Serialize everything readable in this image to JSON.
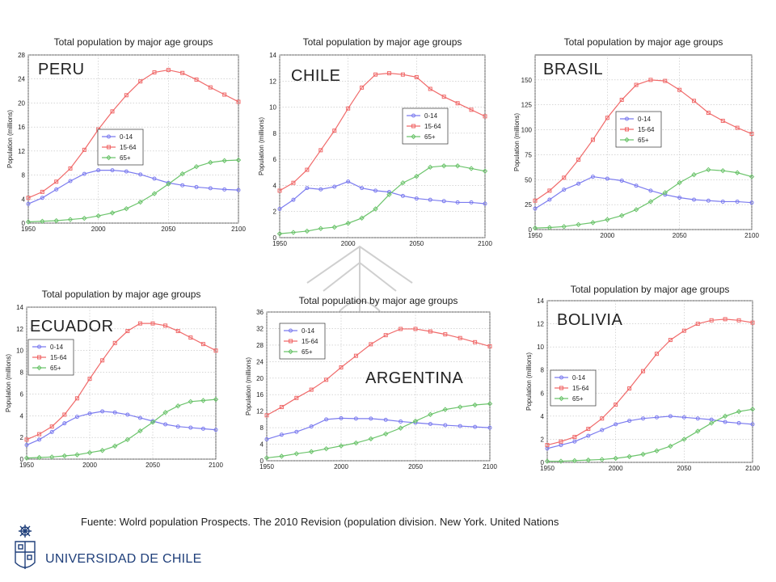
{
  "caption": "Fuente: Wolrd population Prospects. The 2010 Revision (population division. New York. United Nations",
  "logo": {
    "name": "UNIVERSIDAD DE CHILE",
    "color": "#1f3f7a"
  },
  "series_colors": {
    "0-14": "#7b7bef",
    "15-64": "#f06a6a",
    "65+": "#6cc46c"
  },
  "chart_data": [
    {
      "type": "line",
      "country": "PERU",
      "title": "Total population by major age groups",
      "ylabel": "Population (millions)",
      "xlabel": "",
      "xlim": [
        1950,
        2100
      ],
      "ylim": [
        0,
        28
      ],
      "xticks": [
        1950,
        2000,
        2050,
        2100
      ],
      "yticks": [
        0,
        4,
        8,
        12,
        16,
        20,
        24,
        28
      ],
      "x": [
        1950,
        1960,
        1970,
        1980,
        1990,
        2000,
        2010,
        2020,
        2030,
        2040,
        2050,
        2060,
        2070,
        2080,
        2090,
        2100
      ],
      "series": [
        {
          "name": "0-14",
          "values": [
            3.2,
            4.2,
            5.6,
            7.0,
            8.2,
            8.8,
            8.8,
            8.6,
            8.1,
            7.4,
            6.7,
            6.3,
            6.0,
            5.8,
            5.6,
            5.5
          ]
        },
        {
          "name": "15-64",
          "values": [
            4.2,
            5.2,
            6.9,
            9.1,
            12.2,
            15.6,
            18.6,
            21.3,
            23.6,
            25.1,
            25.5,
            25.0,
            23.9,
            22.6,
            21.4,
            20.2
          ]
        },
        {
          "name": "65+",
          "values": [
            0.2,
            0.3,
            0.4,
            0.6,
            0.8,
            1.2,
            1.7,
            2.4,
            3.5,
            4.9,
            6.5,
            8.2,
            9.4,
            10.1,
            10.4,
            10.5
          ]
        }
      ]
    },
    {
      "type": "line",
      "country": "CHILE",
      "title": "Total population by major age groups",
      "ylabel": "Population (millions)",
      "xlabel": "",
      "xlim": [
        1950,
        2100
      ],
      "ylim": [
        0,
        14
      ],
      "xticks": [
        1950,
        2000,
        2050,
        2100
      ],
      "yticks": [
        0,
        2,
        4,
        6,
        8,
        10,
        12,
        14
      ],
      "x": [
        1950,
        1960,
        1970,
        1980,
        1990,
        2000,
        2010,
        2020,
        2030,
        2040,
        2050,
        2060,
        2070,
        2080,
        2090,
        2100
      ],
      "series": [
        {
          "name": "0-14",
          "values": [
            2.2,
            2.9,
            3.8,
            3.7,
            3.9,
            4.3,
            3.8,
            3.6,
            3.5,
            3.2,
            3.0,
            2.9,
            2.8,
            2.7,
            2.7,
            2.6
          ]
        },
        {
          "name": "15-64",
          "values": [
            3.6,
            4.2,
            5.2,
            6.7,
            8.2,
            9.9,
            11.5,
            12.5,
            12.6,
            12.5,
            12.3,
            11.4,
            10.8,
            10.3,
            9.8,
            9.3
          ]
        },
        {
          "name": "65+",
          "values": [
            0.3,
            0.4,
            0.5,
            0.7,
            0.8,
            1.1,
            1.5,
            2.2,
            3.3,
            4.2,
            4.7,
            5.4,
            5.5,
            5.5,
            5.3,
            5.1
          ]
        }
      ]
    },
    {
      "type": "line",
      "country": "BRASIL",
      "title": "Total population by major age groups",
      "ylabel": "Population (millions)",
      "xlabel": "",
      "xlim": [
        1950,
        2100
      ],
      "ylim": [
        0,
        175
      ],
      "xticks": [
        1950,
        2000,
        2050,
        2100
      ],
      "yticks": [
        0,
        25,
        50,
        75,
        100,
        125,
        150
      ],
      "x": [
        1950,
        1960,
        1970,
        1980,
        1990,
        2000,
        2010,
        2020,
        2030,
        2040,
        2050,
        2060,
        2070,
        2080,
        2090,
        2100
      ],
      "series": [
        {
          "name": "0-14",
          "values": [
            21,
            30,
            40,
            46,
            53,
            51,
            49,
            44,
            39,
            35,
            32,
            30,
            29,
            28,
            28,
            27
          ]
        },
        {
          "name": "15-64",
          "values": [
            29,
            39,
            52,
            70,
            90,
            112,
            130,
            145,
            150,
            149,
            140,
            129,
            117,
            109,
            102,
            96
          ]
        },
        {
          "name": "65+",
          "values": [
            1.5,
            2,
            3,
            5,
            7,
            10,
            14,
            20,
            28,
            37,
            47,
            55,
            60,
            59,
            57,
            53
          ]
        }
      ]
    },
    {
      "type": "line",
      "country": "ECUADOR",
      "title": "Total population by major age groups",
      "ylabel": "Population (millions)",
      "xlabel": "",
      "xlim": [
        1950,
        2100
      ],
      "ylim": [
        0,
        14
      ],
      "xticks": [
        1950,
        2000,
        2050,
        2100
      ],
      "yticks": [
        0,
        2,
        4,
        6,
        8,
        10,
        12,
        14
      ],
      "x": [
        1950,
        1960,
        1970,
        1980,
        1990,
        2000,
        2010,
        2020,
        2030,
        2040,
        2050,
        2060,
        2070,
        2080,
        2090,
        2100
      ],
      "series": [
        {
          "name": "0-14",
          "values": [
            1.3,
            1.8,
            2.5,
            3.3,
            3.9,
            4.2,
            4.4,
            4.3,
            4.1,
            3.8,
            3.5,
            3.2,
            3.0,
            2.9,
            2.8,
            2.7
          ]
        },
        {
          "name": "15-64",
          "values": [
            1.8,
            2.3,
            3.0,
            4.1,
            5.6,
            7.4,
            9.1,
            10.7,
            11.8,
            12.5,
            12.5,
            12.3,
            11.8,
            11.2,
            10.6,
            10.0
          ]
        },
        {
          "name": "65+",
          "values": [
            0.1,
            0.15,
            0.2,
            0.3,
            0.4,
            0.6,
            0.8,
            1.2,
            1.8,
            2.6,
            3.4,
            4.3,
            4.9,
            5.3,
            5.4,
            5.5
          ]
        }
      ]
    },
    {
      "type": "line",
      "country": "ARGENTINA",
      "title": "Total population by major age groups",
      "ylabel": "Population (millions)",
      "xlabel": "",
      "xlim": [
        1950,
        2100
      ],
      "ylim": [
        0,
        36
      ],
      "xticks": [
        1950,
        2000,
        2050,
        2100
      ],
      "yticks": [
        0,
        4,
        8,
        12,
        16,
        20,
        24,
        28,
        32,
        36
      ],
      "x": [
        1950,
        1960,
        1970,
        1980,
        1990,
        2000,
        2010,
        2020,
        2030,
        2040,
        2050,
        2060,
        2070,
        2080,
        2090,
        2100
      ],
      "series": [
        {
          "name": "0-14",
          "values": [
            5.2,
            6.3,
            7.0,
            8.3,
            10.0,
            10.3,
            10.2,
            10.2,
            9.9,
            9.5,
            9.2,
            8.9,
            8.6,
            8.4,
            8.2,
            8.0
          ]
        },
        {
          "name": "15-64",
          "values": [
            11.0,
            13.0,
            15.2,
            17.2,
            19.6,
            22.6,
            25.4,
            28.2,
            30.4,
            31.9,
            31.9,
            31.3,
            30.6,
            29.7,
            28.7,
            27.7
          ]
        },
        {
          "name": "65+",
          "values": [
            0.7,
            1.1,
            1.7,
            2.2,
            2.9,
            3.6,
            4.3,
            5.3,
            6.5,
            7.9,
            9.6,
            11.2,
            12.4,
            13.0,
            13.5,
            13.8
          ]
        }
      ]
    },
    {
      "type": "line",
      "country": "BOLIVIA",
      "title": "Total population by major age groups",
      "ylabel": "Population (millions)",
      "xlabel": "",
      "xlim": [
        1950,
        2100
      ],
      "ylim": [
        0,
        14
      ],
      "xticks": [
        1950,
        2000,
        2050,
        2100
      ],
      "yticks": [
        0,
        2,
        4,
        6,
        8,
        10,
        12,
        14
      ],
      "x": [
        1950,
        1960,
        1970,
        1980,
        1990,
        2000,
        2010,
        2020,
        2030,
        2040,
        2050,
        2060,
        2070,
        2080,
        2090,
        2100
      ],
      "series": [
        {
          "name": "0-14",
          "values": [
            1.2,
            1.5,
            1.8,
            2.3,
            2.8,
            3.3,
            3.6,
            3.8,
            3.9,
            4.0,
            3.9,
            3.8,
            3.7,
            3.5,
            3.4,
            3.3
          ]
        },
        {
          "name": "15-64",
          "values": [
            1.5,
            1.8,
            2.2,
            2.9,
            3.8,
            5.0,
            6.4,
            7.9,
            9.4,
            10.6,
            11.4,
            12.0,
            12.3,
            12.4,
            12.3,
            12.1
          ]
        },
        {
          "name": "65+",
          "values": [
            0.1,
            0.1,
            0.15,
            0.2,
            0.25,
            0.35,
            0.5,
            0.7,
            1.0,
            1.4,
            2.0,
            2.7,
            3.4,
            4.0,
            4.4,
            4.6
          ]
        }
      ]
    }
  ]
}
